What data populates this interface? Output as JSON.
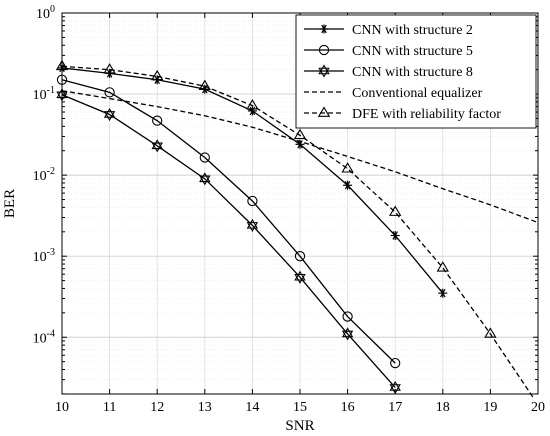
{
  "chart_data": {
    "type": "line",
    "xlabel": "SNR",
    "ylabel": "BER",
    "xlim": [
      10,
      20
    ],
    "ylim_log10": [
      -4.7,
      0
    ],
    "yscale": "log",
    "grid": true,
    "legend_position": "top-right",
    "xticks": [
      "10",
      "11",
      "12",
      "13",
      "14",
      "15",
      "16",
      "17",
      "18",
      "19",
      "20"
    ],
    "yticks": [
      {
        "base": "10",
        "exp": "0",
        "value": 1
      },
      {
        "base": "10",
        "exp": "-1",
        "value": 0.1
      },
      {
        "base": "10",
        "exp": "-2",
        "value": 0.01
      },
      {
        "base": "10",
        "exp": "-3",
        "value": 0.001
      },
      {
        "base": "10",
        "exp": "-4",
        "value": 0.0001
      }
    ],
    "series": [
      {
        "name": "CNN with structure 2",
        "marker": "asterisk",
        "line": "solid",
        "x": [
          10,
          11,
          12,
          13,
          14,
          15,
          16,
          17,
          18
        ],
        "y": [
          0.21,
          0.18,
          0.15,
          0.115,
          0.062,
          0.024,
          0.0075,
          0.0018,
          0.00035
        ]
      },
      {
        "name": "CNN with structure 5",
        "marker": "circle",
        "line": "solid",
        "x": [
          10,
          11,
          12,
          13,
          14,
          15,
          16,
          17
        ],
        "y": [
          0.15,
          0.105,
          0.047,
          0.0165,
          0.0048,
          0.001,
          0.00018,
          4.8e-05
        ]
      },
      {
        "name": "CNN with structure 8",
        "marker": "hexagram",
        "line": "solid",
        "x": [
          10,
          11,
          12,
          13,
          14,
          15,
          16,
          17
        ],
        "y": [
          0.098,
          0.056,
          0.023,
          0.009,
          0.0024,
          0.00055,
          0.00011,
          2.4e-05
        ]
      },
      {
        "name": "Conventional equalizer",
        "marker": "none",
        "line": "dashed",
        "x": [
          10,
          11,
          12,
          13,
          14,
          15,
          16,
          17,
          18,
          19,
          20
        ],
        "y": [
          0.11,
          0.088,
          0.07,
          0.054,
          0.039,
          0.026,
          0.017,
          0.011,
          0.0068,
          0.0043,
          0.0026
        ]
      },
      {
        "name": "DFE with reliability factor",
        "marker": "triangle",
        "line": "dashed",
        "x": [
          10,
          11,
          12,
          13,
          14,
          15,
          16,
          17,
          18,
          19,
          19.9
        ],
        "y": [
          0.22,
          0.2,
          0.165,
          0.125,
          0.072,
          0.031,
          0.012,
          0.0035,
          0.00072,
          0.00011,
          1.8e-05
        ],
        "marker_count": 10
      }
    ]
  }
}
